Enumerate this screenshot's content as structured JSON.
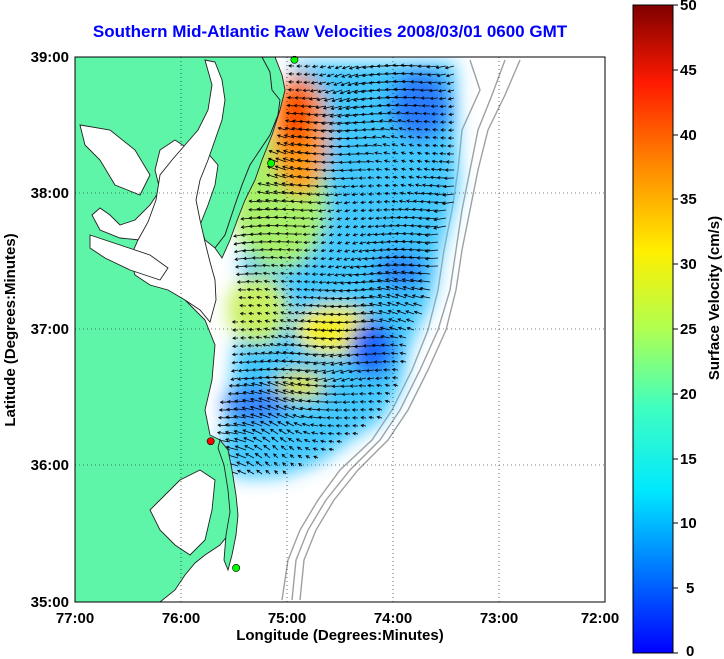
{
  "title": "Southern Mid-Atlantic Raw Velocities 2008/03/01 0600 GMT",
  "axes": {
    "xlabel": "Longitude (Degrees:Minutes)",
    "ylabel": "Latitude (Degrees:Minutes)",
    "x_ticks": [
      "77:00",
      "76:00",
      "75:00",
      "74:00",
      "73:00",
      "72:00"
    ],
    "y_ticks": [
      "39:00",
      "38:00",
      "37:00",
      "36:00",
      "35:00"
    ],
    "xlim": [
      -77,
      -72
    ],
    "ylim": [
      35,
      39
    ],
    "grid": "dotted"
  },
  "colorbar": {
    "label": "Surface Velocity (cm/s)",
    "ticks": [
      "50",
      "45",
      "40",
      "35",
      "30",
      "25",
      "20",
      "15",
      "10",
      "5",
      "0"
    ],
    "range": [
      0,
      50
    ],
    "colormap": "jet"
  },
  "stations": [
    {
      "lon": -74.93,
      "lat": 38.98,
      "color": "#00ff00"
    },
    {
      "lon": -75.15,
      "lat": 38.22,
      "color": "#00ff00"
    },
    {
      "lon": -75.72,
      "lat": 36.18,
      "color": "#ff0000"
    },
    {
      "lon": -75.48,
      "lat": 35.25,
      "color": "#00ff00"
    }
  ],
  "colors": {
    "land": "#5ff5a8",
    "ocean": "#ffffff",
    "bathymetry": "#a0a0a0",
    "title": "#0000ff"
  }
}
